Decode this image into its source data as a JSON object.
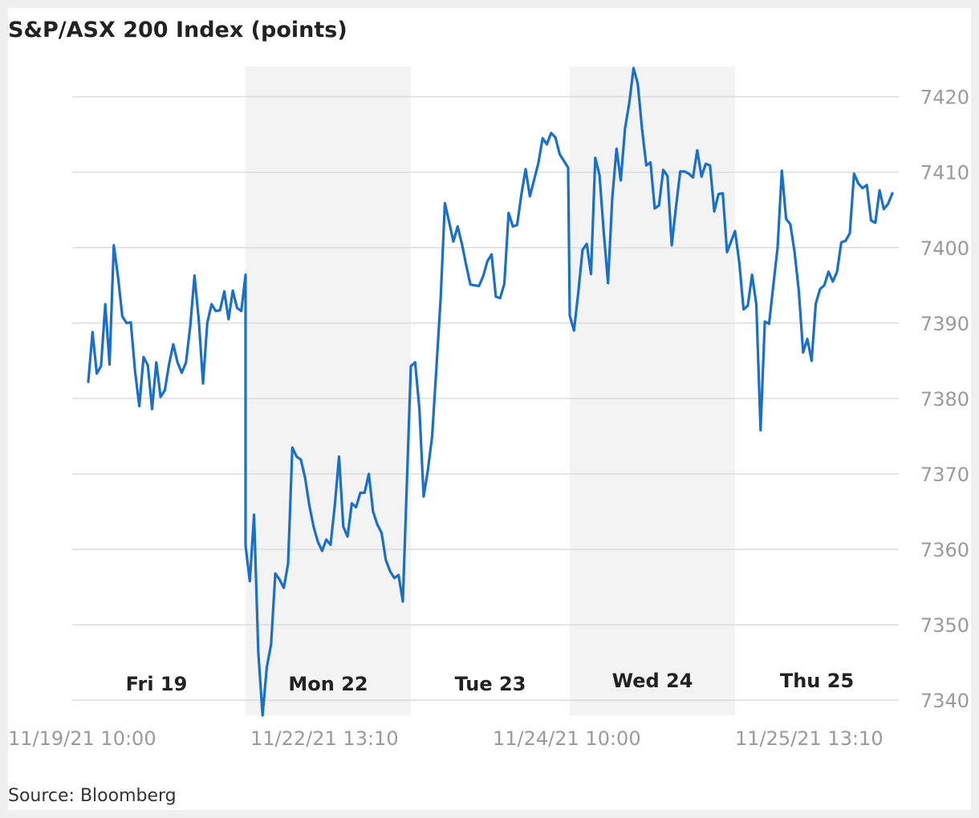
{
  "title": "S&P/ASX 200 Index (points)",
  "source": "Source: Bloomberg",
  "colors": {
    "line": "#1a6fc9",
    "shade": "#f3f3f3",
    "grid": "#dcdcdc"
  },
  "chart_data": {
    "type": "line",
    "title": "S&P/ASX 200 Index (points)",
    "xlabel": "",
    "ylabel": "",
    "ylim": [
      7338,
      7424
    ],
    "yticks": [
      7340,
      7350,
      7360,
      7370,
      7380,
      7390,
      7400,
      7410,
      7420
    ],
    "grid": true,
    "x_tick_labels": [
      "11/19/21 10:00",
      "11/22/21 13:10",
      "11/24/21 10:00",
      "11/25/21 13:10"
    ],
    "day_bands": [
      {
        "label": "Fri 19",
        "shaded": false
      },
      {
        "label": "Mon 22",
        "shaded": true
      },
      {
        "label": "Tue 23",
        "shaded": false
      },
      {
        "label": "Wed 24",
        "shaded": true
      },
      {
        "label": "Thu 25",
        "shaded": false
      }
    ],
    "series": [
      {
        "values": [
          7382.2,
          7388.8,
          7383.3,
          7384.3,
          7392.5,
          7384.5,
          7400.3,
          7396.1,
          7390.9,
          7390.0,
          7390.1,
          7383.6,
          7379.0,
          7385.5,
          7384.4,
          7378.6,
          7384.8,
          7380.2,
          7381.1,
          7384.5,
          7387.2,
          7384.8,
          7383.4,
          7384.8,
          7389.6,
          7396.3,
          7390.4,
          7382.0,
          7390.0,
          7392.5,
          7391.6,
          7391.7,
          7394.2,
          7390.5,
          7394.3,
          7392.0,
          7391.6,
          7396.4,
          7360.5,
          7355.8,
          7364.6,
          7346.3,
          7338.0,
          7344.4,
          7347.4,
          7356.8,
          7356.0,
          7354.9,
          7358.1,
          7373.5,
          7372.3,
          7371.9,
          7369.5,
          7365.8,
          7363.0,
          7361.0,
          7359.8,
          7361.3,
          7360.6,
          7365.8,
          7372.3,
          7363.0,
          7361.7,
          7366.1,
          7365.6,
          7367.5,
          7367.5,
          7370.0,
          7365.0,
          7363.3,
          7362.2,
          7358.6,
          7357.1,
          7356.2,
          7356.6,
          7353.1,
          7384.3,
          7384.8,
          7378.7,
          7367.0,
          7370.5,
          7375.0,
          7384.0,
          7393.2,
          7405.9,
          7403.4,
          7400.8,
          7402.8,
          7400.5,
          7397.7,
          7395.1,
          7395.0,
          7394.9,
          7396.2,
          7398.2,
          7399.1,
          7393.5,
          7393.3,
          7395.2,
          7404.6,
          7402.8,
          7403.0,
          7407.0,
          7410.4,
          7406.8,
          7409.0,
          7411.2,
          7414.5,
          7413.7,
          7415.2,
          7414.6,
          7412.4,
          7411.5,
          7410.6,
          7391.0,
          7389.0,
          7394.0,
          7399.7,
          7400.5,
          7396.5,
          7411.9,
          7409.6,
          7402.0,
          7395.3,
          7406.6,
          7413.1,
          7408.9,
          7415.8,
          7419.2,
          7423.8,
          7421.7,
          7415.7,
          7410.9,
          7411.3,
          7405.2,
          7405.6,
          7410.3,
          7409.5,
          7400.3,
          7405.4,
          7410.1,
          7410.1,
          7409.8,
          7409.3,
          7412.9,
          7409.4,
          7411.1,
          7410.9,
          7404.8,
          7407.1,
          7407.2,
          7399.4,
          7402.2,
          7398.0,
          7391.8,
          7392.3,
          7396.4,
          7392.5,
          7375.8,
          7390.2,
          7389.9,
          7395.0,
          7400.0,
          7410.2,
          7403.8,
          7403.1,
          7399.4,
          7394.2,
          7386.1,
          7387.9,
          7385.0,
          7392.6,
          7394.5,
          7395.0,
          7396.8,
          7395.5,
          7396.8,
          7400.7,
          7400.9,
          7401.9,
          7409.8,
          7408.5,
          7407.9,
          7408.3,
          7403.6,
          7403.3,
          7407.6,
          7405.1,
          7405.8,
          7407.2
        ],
        "sessions": [
          38,
          38,
          38,
          38,
          38
        ]
      }
    ]
  }
}
